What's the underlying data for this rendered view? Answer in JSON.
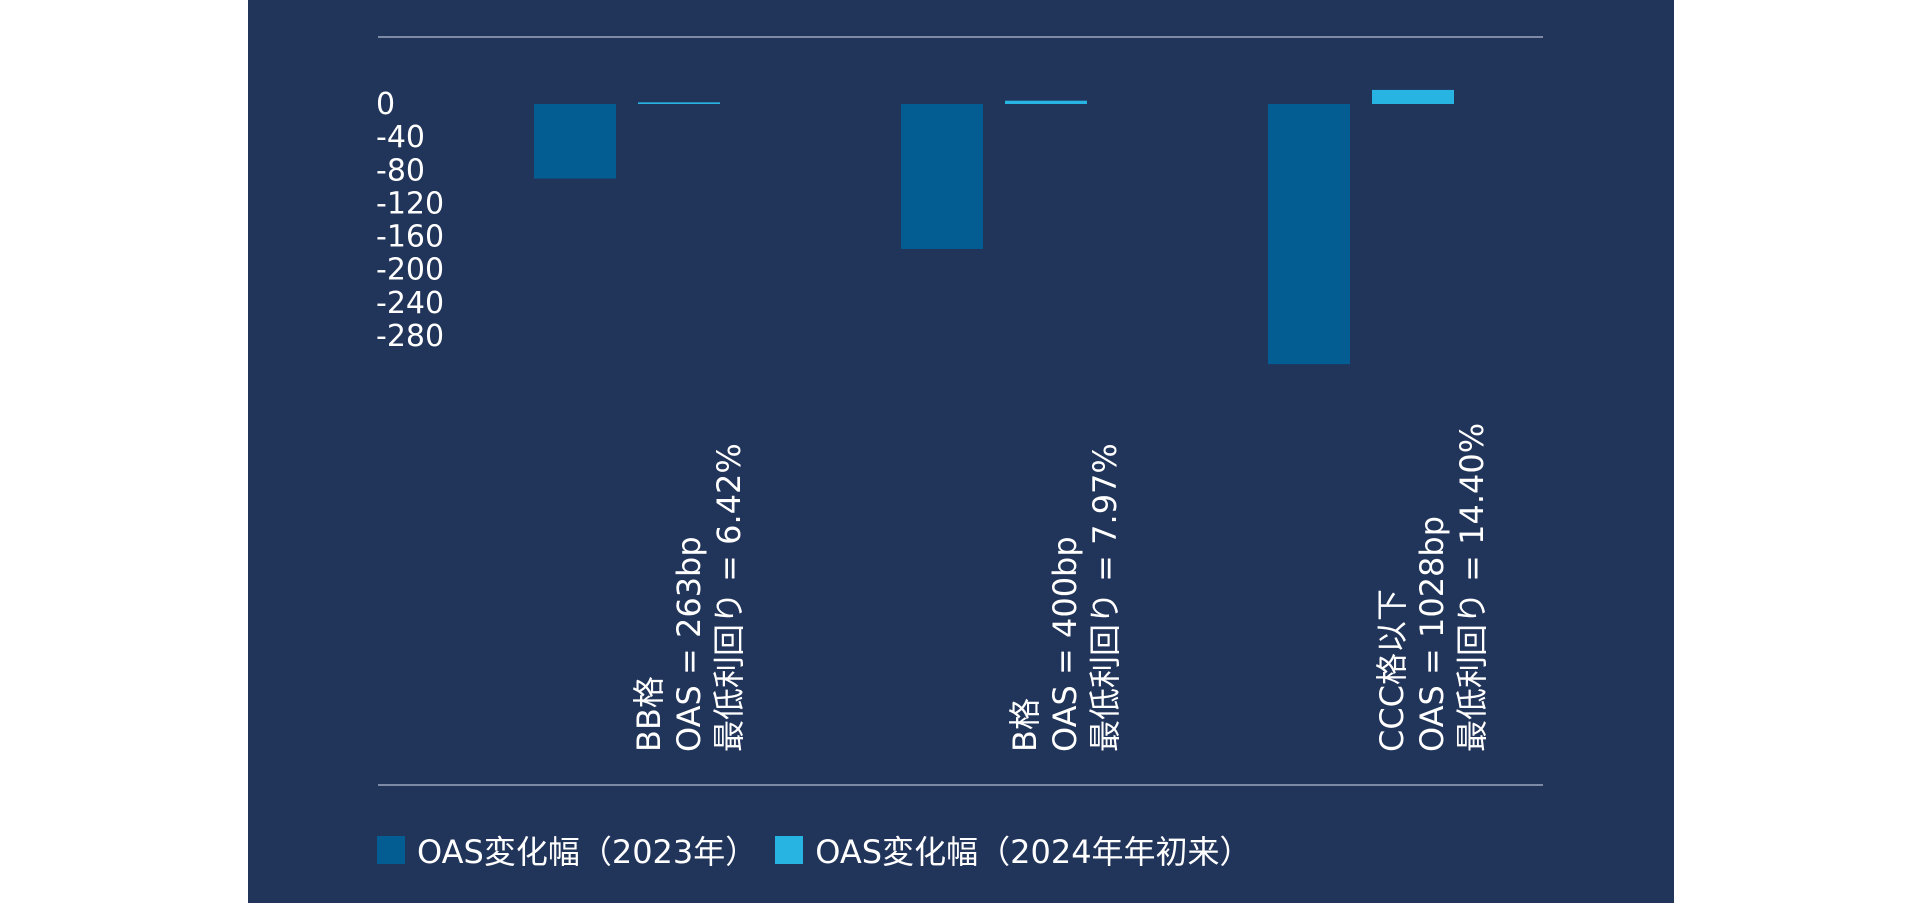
{
  "chart_data": {
    "type": "bar",
    "categories": [
      [
        "BB格",
        "OAS = 263bp",
        "最低利回り = 6.42%"
      ],
      [
        "B格",
        "OAS = 400bp",
        "最低利回り = 7.97%"
      ],
      [
        "CCC格以下",
        "OAS = 1028bp",
        "最低利回り = 14.40%"
      ]
    ],
    "series": [
      {
        "name": "OAS変化幅（2023年）",
        "color": "#035d93",
        "values": [
          -90,
          -175,
          -314
        ]
      },
      {
        "name": "OAS変化幅（2024年年初来）",
        "color": "#27b4e2",
        "values": [
          2,
          4,
          17
        ]
      }
    ],
    "yticks": [
      0,
      -40,
      -80,
      -120,
      -160,
      -200,
      -240,
      -280
    ],
    "ylim": [
      -314,
      17
    ],
    "grid": false,
    "legend_position": "bottom-left"
  }
}
